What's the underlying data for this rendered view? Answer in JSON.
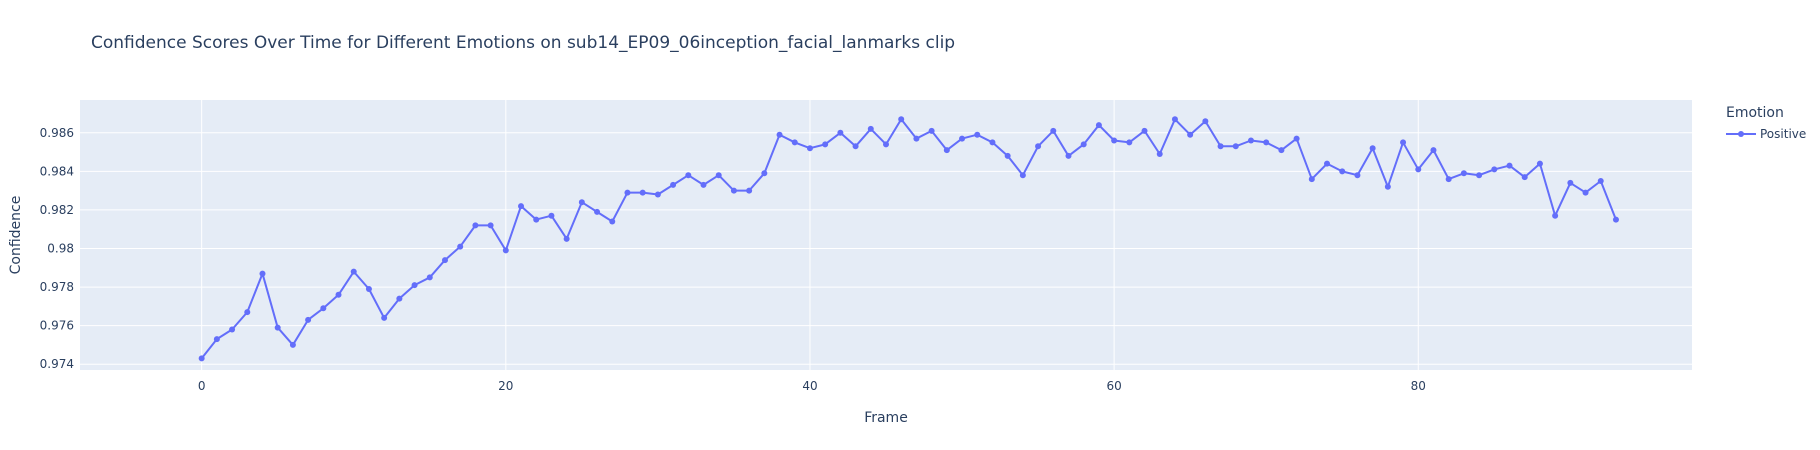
{
  "chart_data": {
    "type": "line",
    "title": "Confidence Scores Over Time for Different Emotions on sub14_EP09_06inception_facial_lanmarks clip",
    "xlabel": "Frame",
    "ylabel": "Confidence",
    "xlim": [
      -8,
      98
    ],
    "ylim": [
      0.9737,
      0.9877
    ],
    "x_ticks": [
      0,
      20,
      40,
      60,
      80
    ],
    "y_ticks": [
      0.974,
      0.976,
      0.978,
      0.98,
      0.982,
      0.984,
      0.986
    ],
    "y_tick_labels": [
      "0.974",
      "0.976",
      "0.978",
      "0.98",
      "0.982",
      "0.984",
      "0.986"
    ],
    "grid": true,
    "legend": {
      "title": "Emotion",
      "position": "top-right"
    },
    "series": [
      {
        "name": "Positive",
        "color": "#636efa",
        "x": [
          0,
          1,
          2,
          3,
          4,
          5,
          6,
          7,
          8,
          9,
          10,
          11,
          12,
          13,
          14,
          15,
          16,
          17,
          18,
          19,
          20,
          21,
          22,
          23,
          24,
          25,
          26,
          27,
          28,
          29,
          30,
          31,
          32,
          33,
          34,
          35,
          36,
          37,
          38,
          39,
          40,
          41,
          42,
          43,
          44,
          45,
          46,
          47,
          48,
          49,
          50,
          51,
          52,
          53,
          54,
          55,
          56,
          57,
          58,
          59,
          60,
          61,
          62,
          63,
          64,
          65,
          66,
          67,
          68,
          69,
          70,
          71,
          72,
          73,
          74,
          75,
          76,
          77,
          78,
          79,
          80,
          81,
          82,
          83,
          84,
          85,
          86,
          87,
          88,
          89,
          90,
          91,
          92,
          93
        ],
        "values": [
          0.9743,
          0.9753,
          0.9758,
          0.9767,
          0.9787,
          0.9759,
          0.975,
          0.9763,
          0.9769,
          0.9776,
          0.9788,
          0.9779,
          0.9764,
          0.9774,
          0.9781,
          0.9785,
          0.9794,
          0.9801,
          0.9812,
          0.9812,
          0.9799,
          0.9822,
          0.9815,
          0.9817,
          0.9805,
          0.9824,
          0.9819,
          0.9814,
          0.9829,
          0.9829,
          0.9828,
          0.9833,
          0.9838,
          0.9833,
          0.9838,
          0.983,
          0.983,
          0.9839,
          0.9859,
          0.9855,
          0.9852,
          0.9854,
          0.986,
          0.9853,
          0.9862,
          0.9854,
          0.9867,
          0.9857,
          0.9861,
          0.9851,
          0.9857,
          0.9859,
          0.9855,
          0.9848,
          0.9838,
          0.9853,
          0.9861,
          0.9848,
          0.9854,
          0.9864,
          0.9856,
          0.9855,
          0.9861,
          0.9849,
          0.9867,
          0.9859,
          0.9866,
          0.9853,
          0.9853,
          0.9856,
          0.9855,
          0.9851,
          0.9857,
          0.9836,
          0.9844,
          0.984,
          0.9838,
          0.9852,
          0.9832,
          0.9855,
          0.9841,
          0.9851,
          0.9836,
          0.9839,
          0.9838,
          0.9841,
          0.9843,
          0.9837,
          0.9844,
          0.9817,
          0.9834,
          0.9829,
          0.9835,
          0.9815
        ]
      }
    ]
  }
}
